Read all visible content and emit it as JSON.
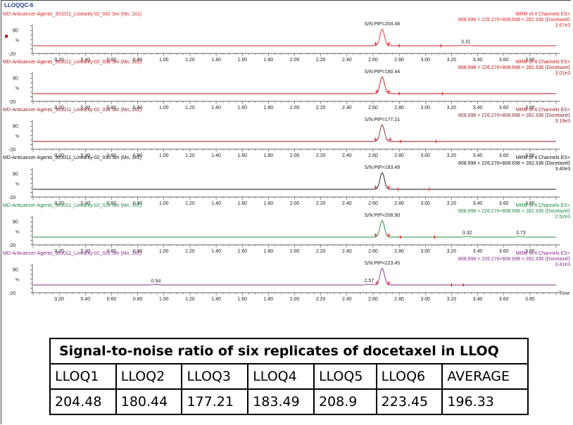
{
  "page_title": "LLOQQC-6",
  "colors": {
    "trace1": "#d92626",
    "trace2": "#c01515",
    "trace3": "#8a1f1f",
    "trace4": "#111111",
    "trace5": "#1e8a3c",
    "trace6": "#8a2b8f",
    "marker": "#d40000"
  },
  "chart_data": {
    "type": "line",
    "xlabel": "Time",
    "xlim": [
      0.0,
      4.0
    ],
    "ylim": [
      -20,
      100
    ],
    "x_ticks": [
      "0.20",
      "0.40",
      "0.60",
      "0.80",
      "1.00",
      "1.20",
      "1.40",
      "1.60",
      "1.80",
      "2.00",
      "2.20",
      "2.40",
      "2.60",
      "2.80",
      "3.00",
      "3.20",
      "3.40",
      "3.60",
      "3.80"
    ],
    "y_ticks": [
      "80",
      "%",
      "-20"
    ],
    "panels": [
      {
        "header": "MD-Anticancer-Agents_301011_Linearity-02_042 Sm (Mn, 2x1)",
        "channel": "MRM of 4 Channels ES+",
        "transition": "808.698 > 226.276+808.698 > 282.336 (Docetaxel)",
        "intensity": "3.67e3",
        "sn_label": "S/N:PtP=204.48",
        "peak_rt": 2.67,
        "peak_height": 85,
        "integration_marks": [
          2.62,
          2.72
        ],
        "noise_marks": [
          2.8,
          3.12
        ],
        "minor_peaks": [
          {
            "rt": 3.31,
            "height": 2,
            "label": "3.31"
          }
        ],
        "color_key": "trace1"
      },
      {
        "header": "MD-Anticancer-Agents_301011_Linearity-02_038 Sm (Mn, 2x1)",
        "channel": "MRM of 4 Channels ES+",
        "transition": "808.698 > 226.276+808.698 > 282.336 (Docetaxel)",
        "intensity": "3.01e3",
        "sn_label": "S/N:PtP=180.44",
        "peak_rt": 2.67,
        "peak_height": 85,
        "integration_marks": [
          2.63,
          2.72
        ],
        "noise_marks": [
          2.8,
          3.13
        ],
        "minor_peaks": [],
        "color_key": "trace2"
      },
      {
        "header": "MD-Anticancer-Agents_301011_Linearity-02_034 Sm (Mn, 2x1)",
        "channel": "MRM of 4 Channels ES+",
        "transition": "808.698 > 226.276+808.698 > 282.336 (Docetaxel)",
        "intensity": "3.19e3",
        "sn_label": "S/N:PtP=177.21",
        "peak_rt": 2.67,
        "peak_height": 85,
        "integration_marks": [
          2.62,
          2.73
        ],
        "noise_marks": [
          2.81,
          3.08
        ],
        "minor_peaks": [],
        "color_key": "trace3"
      },
      {
        "header": "MD-Anticancer-Agents_301011_Linearity-02_030 Sm (Mn, 2x1)",
        "channel": "MRM of 4 Channels ES+",
        "transition": "808.698 > 226.276+808.698 > 282.336 (Docetaxel)",
        "intensity": "3.40e3",
        "sn_label": "S/N:PtP=183.49",
        "peak_rt": 2.67,
        "peak_height": 85,
        "integration_marks": [
          2.62,
          2.72
        ],
        "noise_marks": [
          2.79,
          3.03
        ],
        "minor_peaks": [],
        "color_key": "trace4"
      },
      {
        "header": "MD-Anticancer-Agents_301011_Linearity-02_026 Sm (Mn, 2x1)",
        "channel": "MRM of 4 Channels ES+",
        "transition": "808.698 > 226.276+808.698 > 282.336 (Docetaxel)",
        "intensity": "2.52e3",
        "sn_label": "S/N:PtP=208.90",
        "peak_rt": 2.67,
        "peak_height": 85,
        "integration_marks": [
          2.62,
          2.72
        ],
        "noise_marks": [
          2.81,
          3.07
        ],
        "minor_peaks": [
          {
            "rt": 3.32,
            "height": 3,
            "label": "3.32"
          },
          {
            "rt": 3.73,
            "height": 3,
            "label": "3.73"
          }
        ],
        "color_key": "trace5"
      },
      {
        "header": "MD-Anticancer-Agents_301011_Linearity-02_022 Sm (Mn, 2x1)",
        "channel": "MRM of 4 Channels ES+",
        "transition": "808.698 > 226.276+808.698 > 282.336 (Docetaxel)",
        "intensity": "3.41e3",
        "sn_label": "S/N:PtP=223.45",
        "peak_rt": 2.67,
        "peak_height": 85,
        "integration_marks": [
          2.63,
          2.72
        ],
        "noise_marks": [
          3.2,
          3.29
        ],
        "minor_peaks": [
          {
            "rt": 0.94,
            "height": 2,
            "label": "0.94"
          },
          {
            "rt": 2.57,
            "height": 3,
            "label": "2.57"
          }
        ],
        "color_key": "trace6"
      }
    ]
  },
  "table": {
    "caption": "Signal-to-noise ratio of six replicates of docetaxel in LLOQ",
    "headers": [
      "LLOQ1",
      "LLOQ2",
      "LLOQ3",
      "LLOQ4",
      "LLOQ5",
      "LLOQ6",
      "AVERAGE"
    ],
    "values": [
      "204.48",
      "180.44",
      "177.21",
      "183.49",
      "208.9",
      "223.45",
      "196.33"
    ]
  }
}
